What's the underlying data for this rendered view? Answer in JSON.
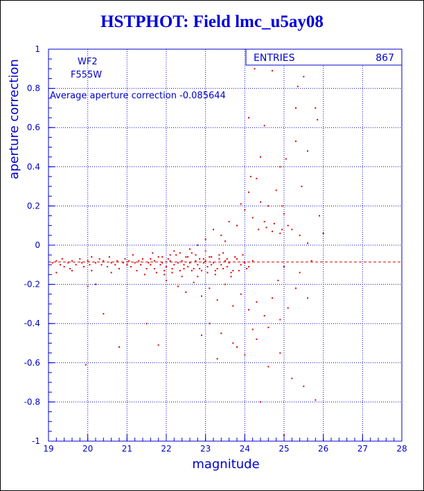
{
  "title": "HSTPHOT: Field lmc_u5ay08",
  "annotations": {
    "camera": "WF2",
    "filter": "F555W",
    "average_text": "Average aperture correction -0.085644"
  },
  "stats_box": {
    "label": "ENTRIES",
    "value": "867"
  },
  "colors": {
    "title": "#0000d8",
    "axis": "#0000cc",
    "grid": "#0000cc",
    "points": "#dd0000",
    "average_line": "#dd0000"
  },
  "chart_data": {
    "type": "scatter",
    "title": "HSTPHOT: Field lmc_u5ay08",
    "xlabel": "magnitude",
    "ylabel": "aperture correction",
    "xlim": [
      19,
      28
    ],
    "ylim": [
      -1,
      1
    ],
    "x_ticks": [
      "19",
      "20",
      "21",
      "22",
      "23",
      "24",
      "25",
      "26",
      "27",
      "28"
    ],
    "y_ticks": [
      "-1",
      "-0.8",
      "-0.6",
      "-0.4",
      "-0.2",
      "0",
      "0.2",
      "0.4",
      "0.6",
      "0.8",
      "1"
    ],
    "grid": true,
    "entries": 867,
    "average_line_y": -0.085644,
    "series": [
      {
        "values": [
          [
            19.1,
            -0.09
          ],
          [
            19.2,
            -0.08
          ],
          [
            19.3,
            -0.1
          ],
          [
            19.35,
            -0.07
          ],
          [
            19.4,
            -0.11
          ],
          [
            19.5,
            -0.09
          ],
          [
            19.55,
            -0.12
          ],
          [
            19.6,
            -0.08
          ],
          [
            19.7,
            -0.1
          ],
          [
            19.8,
            -0.07
          ],
          [
            19.85,
            -0.09
          ],
          [
            19.9,
            -0.11
          ],
          [
            20.0,
            -0.08
          ],
          [
            20.05,
            -0.1
          ],
          [
            20.1,
            -0.13
          ],
          [
            20.2,
            -0.09
          ],
          [
            20.3,
            -0.07
          ],
          [
            20.35,
            -0.1
          ],
          [
            20.4,
            -0.08
          ],
          [
            20.5,
            -0.11
          ],
          [
            20.55,
            -0.06
          ],
          [
            20.6,
            -0.09
          ],
          [
            20.7,
            -0.1
          ],
          [
            20.75,
            -0.08
          ],
          [
            20.8,
            -0.12
          ],
          [
            20.9,
            -0.09
          ],
          [
            20.95,
            -0.07
          ],
          [
            21.0,
            -0.1
          ],
          [
            21.05,
            -0.08
          ],
          [
            21.1,
            -0.11
          ],
          [
            21.2,
            -0.09
          ],
          [
            21.25,
            -0.13
          ],
          [
            21.3,
            -0.08
          ],
          [
            21.35,
            -0.1
          ],
          [
            21.4,
            -0.07
          ],
          [
            21.5,
            -0.12
          ],
          [
            21.55,
            -0.09
          ],
          [
            21.6,
            -0.1
          ],
          [
            21.7,
            -0.08
          ],
          [
            21.75,
            -0.14
          ],
          [
            21.8,
            -0.06
          ],
          [
            21.85,
            -0.1
          ],
          [
            21.9,
            -0.09
          ],
          [
            22.0,
            -0.11
          ],
          [
            22.05,
            -0.07
          ],
          [
            22.1,
            -0.08
          ],
          [
            22.15,
            -0.12
          ],
          [
            22.2,
            -0.1
          ],
          [
            22.25,
            -0.05
          ],
          [
            22.3,
            -0.09
          ],
          [
            22.35,
            -0.13
          ],
          [
            22.4,
            -0.08
          ],
          [
            22.45,
            -0.1
          ],
          [
            22.5,
            -0.06
          ],
          [
            22.55,
            -0.11
          ],
          [
            22.6,
            -0.09
          ],
          [
            22.65,
            -0.04
          ],
          [
            22.7,
            -0.12
          ],
          [
            22.75,
            -0.08
          ],
          [
            22.8,
            -0.1
          ],
          [
            22.85,
            -0.07
          ],
          [
            22.9,
            -0.13
          ],
          [
            22.95,
            -0.09
          ],
          [
            23.0,
            -0.08
          ],
          [
            23.05,
            -0.11
          ],
          [
            23.1,
            -0.06
          ],
          [
            23.15,
            -0.1
          ],
          [
            23.2,
            -0.09
          ],
          [
            23.3,
            -0.12
          ],
          [
            23.35,
            -0.07
          ],
          [
            23.4,
            -0.1
          ],
          [
            23.5,
            -0.08
          ],
          [
            23.55,
            -0.11
          ],
          [
            23.6,
            -0.09
          ],
          [
            23.7,
            -0.13
          ],
          [
            23.8,
            -0.07
          ],
          [
            23.9,
            -0.1
          ],
          [
            24.0,
            -0.09
          ],
          [
            24.1,
            -0.11
          ],
          [
            24.2,
            -0.08
          ],
          [
            19.2,
            -0.14
          ],
          [
            19.6,
            -0.13
          ],
          [
            20.1,
            -0.06
          ],
          [
            20.6,
            -0.14
          ],
          [
            21.15,
            -0.05
          ],
          [
            21.45,
            -0.15
          ],
          [
            21.65,
            -0.04
          ],
          [
            21.95,
            -0.15
          ],
          [
            22.2,
            -0.03
          ],
          [
            22.4,
            -0.16
          ],
          [
            22.6,
            -0.02
          ],
          [
            22.8,
            -0.16
          ],
          [
            23.0,
            -0.03
          ],
          [
            23.25,
            -0.15
          ],
          [
            23.45,
            -0.04
          ],
          [
            23.65,
            -0.16
          ],
          [
            22.0,
            -0.18
          ],
          [
            22.3,
            -0.21
          ],
          [
            22.5,
            -0.24
          ],
          [
            22.7,
            -0.19
          ],
          [
            22.9,
            -0.26
          ],
          [
            23.1,
            -0.22
          ],
          [
            23.3,
            -0.28
          ],
          [
            23.5,
            -0.2
          ],
          [
            23.7,
            -0.31
          ],
          [
            23.9,
            -0.25
          ],
          [
            24.1,
            -0.33
          ],
          [
            24.3,
            -0.29
          ],
          [
            24.5,
            -0.36
          ],
          [
            24.7,
            -0.27
          ],
          [
            24.9,
            -0.38
          ],
          [
            25.1,
            -0.32
          ],
          [
            22.8,
            0.0
          ],
          [
            23.0,
            0.03
          ],
          [
            23.2,
            0.08
          ],
          [
            23.4,
            0.05
          ],
          [
            23.6,
            0.12
          ],
          [
            23.8,
            0.1
          ],
          [
            24.0,
            0.18
          ],
          [
            24.2,
            0.14
          ],
          [
            24.4,
            0.22
          ],
          [
            24.6,
            0.2
          ],
          [
            24.8,
            0.28
          ],
          [
            25.0,
            0.16
          ],
          [
            25.2,
            0.08
          ],
          [
            25.4,
            0.05
          ],
          [
            24.3,
            0.34
          ],
          [
            24.1,
            0.27
          ],
          [
            23.9,
            0.21
          ],
          [
            24.5,
            0.12
          ],
          [
            24.7,
            0.07
          ],
          [
            24.9,
            0.06
          ],
          [
            25.1,
            0.1
          ],
          [
            24.35,
            0.08
          ],
          [
            24.55,
            0.09
          ],
          [
            24.75,
            0.11
          ],
          [
            24.95,
            0.08
          ],
          [
            23.5,
            0.02
          ],
          [
            23.1,
            -0.4
          ],
          [
            23.4,
            -0.45
          ],
          [
            23.7,
            -0.5
          ],
          [
            24.0,
            -0.56
          ],
          [
            24.3,
            -0.48
          ],
          [
            24.6,
            -0.62
          ],
          [
            24.9,
            -0.55
          ],
          [
            25.2,
            -0.68
          ],
          [
            25.5,
            -0.72
          ],
          [
            25.8,
            -0.79
          ],
          [
            25.0,
            -0.97
          ],
          [
            24.4,
            -0.8
          ],
          [
            22.9,
            -0.46
          ],
          [
            23.3,
            -0.58
          ],
          [
            23.8,
            -0.52
          ],
          [
            24.2,
            -0.43
          ],
          [
            20.4,
            -0.35
          ],
          [
            21.5,
            -0.4
          ],
          [
            21.8,
            -0.51
          ],
          [
            20.8,
            -0.52
          ],
          [
            19.95,
            -0.61
          ],
          [
            20.0,
            -0.21
          ],
          [
            20.2,
            -0.2
          ],
          [
            24.6,
            -0.42
          ],
          [
            24.25,
            0.9
          ],
          [
            24.7,
            0.89
          ],
          [
            25.35,
            0.81
          ],
          [
            25.5,
            0.86
          ],
          [
            25.3,
            0.7
          ],
          [
            25.8,
            0.7
          ],
          [
            24.1,
            0.65
          ],
          [
            24.5,
            0.61
          ],
          [
            25.85,
            0.64
          ],
          [
            25.3,
            0.53
          ],
          [
            25.6,
            0.48
          ],
          [
            24.4,
            0.45
          ],
          [
            25.05,
            0.44
          ],
          [
            24.9,
            0.4
          ],
          [
            24.15,
            0.35
          ],
          [
            25.45,
            0.3
          ],
          [
            25.9,
            0.15
          ],
          [
            24.95,
            0.2
          ],
          [
            25.6,
            0.01
          ],
          [
            26.0,
            0.06
          ],
          [
            24.85,
            -0.18
          ],
          [
            25.3,
            -0.22
          ],
          [
            25.6,
            -0.27
          ],
          [
            25.0,
            -0.11
          ],
          [
            25.4,
            -0.14
          ],
          [
            25.7,
            -0.08
          ],
          [
            21.6,
            -0.07
          ],
          [
            21.9,
            -0.06
          ],
          [
            22.1,
            -0.05
          ],
          [
            22.35,
            -0.04
          ],
          [
            22.55,
            -0.06
          ],
          [
            22.75,
            -0.05
          ],
          [
            22.95,
            -0.07
          ],
          [
            23.15,
            -0.06
          ],
          [
            23.35,
            -0.05
          ],
          [
            23.55,
            -0.07
          ],
          [
            23.75,
            -0.06
          ],
          [
            23.95,
            -0.05
          ],
          [
            21.7,
            -0.12
          ],
          [
            21.95,
            -0.13
          ],
          [
            22.15,
            -0.14
          ],
          [
            22.45,
            -0.12
          ],
          [
            22.65,
            -0.13
          ],
          [
            22.85,
            -0.12
          ],
          [
            23.05,
            -0.14
          ],
          [
            23.25,
            -0.13
          ],
          [
            23.45,
            -0.12
          ],
          [
            23.65,
            -0.14
          ],
          [
            23.85,
            -0.13
          ],
          [
            24.05,
            -0.12
          ]
        ]
      }
    ]
  }
}
